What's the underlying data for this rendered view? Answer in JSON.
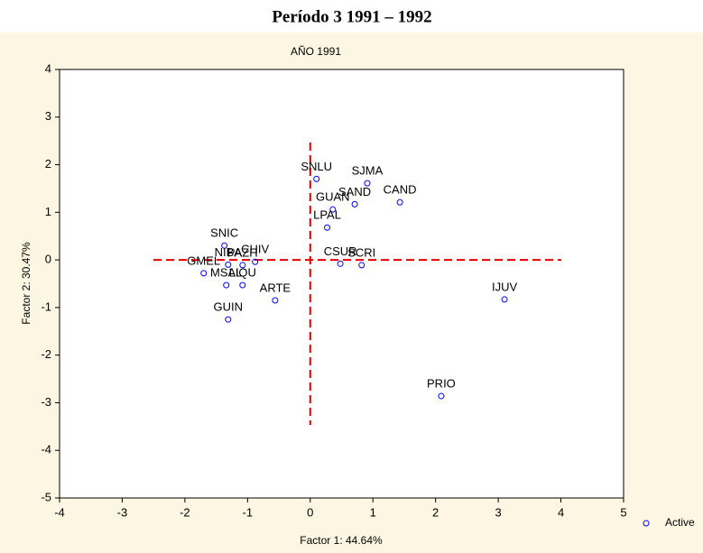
{
  "chart_data": {
    "type": "scatter",
    "title": "Período 3 1991 – 1992",
    "subtitle": "AÑO 1991",
    "x_label": "Factor 1: 44.64%",
    "y_label": "Factor 2: 30.47%",
    "xlim": [
      -4,
      5
    ],
    "ylim": [
      -5,
      4
    ],
    "xticks": [
      -4,
      -3,
      -2,
      -1,
      0,
      1,
      2,
      3,
      4,
      5
    ],
    "yticks": [
      -5,
      -4,
      -3,
      -2,
      -1,
      0,
      1,
      2,
      3,
      4
    ],
    "ref_lines": {
      "x": 0,
      "y": 0
    },
    "ref_color": "#e00000",
    "legend": "lower right",
    "series": [
      {
        "name": "Active",
        "color": "#0000ff",
        "labels": [
          "SNIC",
          "NIBA",
          "PAZH",
          "CHIV",
          "GMEL",
          "MSAL",
          "LIQU",
          "ARTE",
          "GUIN",
          "SNLU",
          "SJMA",
          "SAND",
          "GUAN",
          "CAND",
          "LPAL",
          "CSUR",
          "SCRI",
          "IJUV",
          "PRIO"
        ],
        "x": [
          -1.37,
          -1.31,
          -1.08,
          -0.88,
          -1.7,
          -1.34,
          -1.08,
          -0.56,
          -1.31,
          0.1,
          0.91,
          0.71,
          0.36,
          1.43,
          0.27,
          0.48,
          0.82,
          3.1,
          2.09
        ],
        "values": [
          0.3,
          -0.1,
          -0.11,
          -0.04,
          -0.28,
          -0.53,
          -0.53,
          -0.85,
          -1.25,
          1.7,
          1.61,
          1.17,
          1.06,
          1.21,
          0.68,
          -0.08,
          -0.11,
          -0.83,
          -2.86
        ]
      }
    ]
  }
}
